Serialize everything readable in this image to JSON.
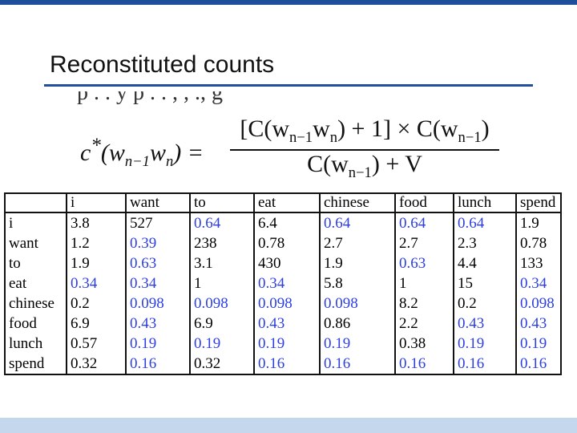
{
  "slide": {
    "title": "Reconstituted counts",
    "cutoff_text": "p . . y p . . , , ., g"
  },
  "formula": {
    "lhs_c": "c",
    "lhs_star": "*",
    "lhs_open": "(w",
    "lhs_sub1": "n−1",
    "lhs_w": "w",
    "lhs_sub2": "n",
    "lhs_close": ") =",
    "num_a": "[C(w",
    "num_sub1": "n−1",
    "num_b": "w",
    "num_sub2": "n",
    "num_c": ") + 1] × C(w",
    "num_sub3": "n−1",
    "num_d": ")",
    "den_a": "C(w",
    "den_sub": "n−1",
    "den_b": ") + V"
  },
  "table": {
    "columns": [
      "",
      "i",
      "want",
      "to",
      "eat",
      "chinese",
      "food",
      "lunch",
      "spend"
    ],
    "rows": [
      {
        "label": "i",
        "cells": [
          {
            "v": "3.8",
            "b": false
          },
          {
            "v": "527",
            "b": false
          },
          {
            "v": "0.64",
            "b": true
          },
          {
            "v": "6.4",
            "b": false
          },
          {
            "v": "0.64",
            "b": true
          },
          {
            "v": "0.64",
            "b": true
          },
          {
            "v": "0.64",
            "b": true
          },
          {
            "v": "1.9",
            "b": false
          }
        ]
      },
      {
        "label": "want",
        "cells": [
          {
            "v": "1.2",
            "b": false
          },
          {
            "v": "0.39",
            "b": true
          },
          {
            "v": "238",
            "b": false
          },
          {
            "v": "0.78",
            "b": false
          },
          {
            "v": "2.7",
            "b": false
          },
          {
            "v": "2.7",
            "b": false
          },
          {
            "v": "2.3",
            "b": false
          },
          {
            "v": "0.78",
            "b": false
          }
        ]
      },
      {
        "label": "to",
        "cells": [
          {
            "v": "1.9",
            "b": false
          },
          {
            "v": "0.63",
            "b": true
          },
          {
            "v": "3.1",
            "b": false
          },
          {
            "v": "430",
            "b": false
          },
          {
            "v": "1.9",
            "b": false
          },
          {
            "v": "0.63",
            "b": true
          },
          {
            "v": "4.4",
            "b": false
          },
          {
            "v": "133",
            "b": false
          }
        ]
      },
      {
        "label": "eat",
        "cells": [
          {
            "v": "0.34",
            "b": true
          },
          {
            "v": "0.34",
            "b": true
          },
          {
            "v": "1",
            "b": false
          },
          {
            "v": "0.34",
            "b": true
          },
          {
            "v": "5.8",
            "b": false
          },
          {
            "v": "1",
            "b": false
          },
          {
            "v": "15",
            "b": false
          },
          {
            "v": "0.34",
            "b": true
          }
        ]
      },
      {
        "label": "chinese",
        "cells": [
          {
            "v": "0.2",
            "b": false
          },
          {
            "v": "0.098",
            "b": true
          },
          {
            "v": "0.098",
            "b": true
          },
          {
            "v": "0.098",
            "b": true
          },
          {
            "v": "0.098",
            "b": true
          },
          {
            "v": "8.2",
            "b": false
          },
          {
            "v": "0.2",
            "b": false
          },
          {
            "v": "0.098",
            "b": true
          }
        ]
      },
      {
        "label": "food",
        "cells": [
          {
            "v": "6.9",
            "b": false
          },
          {
            "v": "0.43",
            "b": true
          },
          {
            "v": "6.9",
            "b": false
          },
          {
            "v": "0.43",
            "b": true
          },
          {
            "v": "0.86",
            "b": false
          },
          {
            "v": "2.2",
            "b": false
          },
          {
            "v": "0.43",
            "b": true
          },
          {
            "v": "0.43",
            "b": true
          }
        ]
      },
      {
        "label": "lunch",
        "cells": [
          {
            "v": "0.57",
            "b": false
          },
          {
            "v": "0.19",
            "b": true
          },
          {
            "v": "0.19",
            "b": true
          },
          {
            "v": "0.19",
            "b": true
          },
          {
            "v": "0.19",
            "b": true
          },
          {
            "v": "0.38",
            "b": false
          },
          {
            "v": "0.19",
            "b": true
          },
          {
            "v": "0.19",
            "b": true
          }
        ]
      },
      {
        "label": "spend",
        "cells": [
          {
            "v": "0.32",
            "b": false
          },
          {
            "v": "0.16",
            "b": true
          },
          {
            "v": "0.32",
            "b": false
          },
          {
            "v": "0.16",
            "b": true
          },
          {
            "v": "0.16",
            "b": true
          },
          {
            "v": "0.16",
            "b": true
          },
          {
            "v": "0.16",
            "b": true
          },
          {
            "v": "0.16",
            "b": true
          }
        ]
      }
    ]
  },
  "colors": {
    "accent": "#1f4e9c",
    "footer_band": "#c5d7ec",
    "highlight_value": "#2d3fe0"
  }
}
